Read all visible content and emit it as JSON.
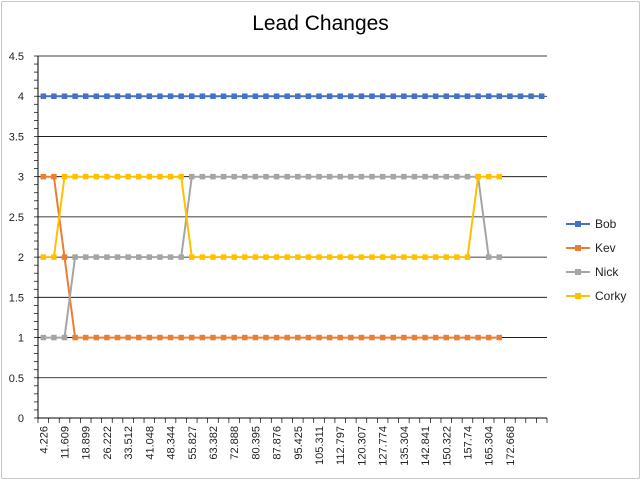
{
  "chart_data": {
    "type": "line",
    "title": "Lead Changes",
    "xlabel": "",
    "ylabel": "",
    "ylim": [
      0,
      4.5
    ],
    "yticks": [
      "0",
      "0.5",
      "1",
      "1.5",
      "2",
      "2.5",
      "3",
      "3.5",
      "4",
      "4.5"
    ],
    "grid": true,
    "legend_position": "right",
    "x_tick_labels": [
      "4.226",
      "11.609",
      "18.899",
      "26.222",
      "33.512",
      "41.048",
      "48.344",
      "55.827",
      "63.382",
      "72.888",
      "80.395",
      "87.876",
      "95.425",
      "105.311",
      "112.797",
      "120.307",
      "127.774",
      "135.304",
      "142.841",
      "150.322",
      "157.74",
      "165.304",
      "172.668"
    ],
    "num_x_points": 48,
    "series": [
      {
        "name": "Bob",
        "color": "#4472C4",
        "values": [
          4,
          4,
          4,
          4,
          4,
          4,
          4,
          4,
          4,
          4,
          4,
          4,
          4,
          4,
          4,
          4,
          4,
          4,
          4,
          4,
          4,
          4,
          4,
          4,
          4,
          4,
          4,
          4,
          4,
          4,
          4,
          4,
          4,
          4,
          4,
          4,
          4,
          4,
          4,
          4,
          4,
          4,
          4,
          4,
          4,
          4,
          4,
          4
        ]
      },
      {
        "name": "Kev",
        "color": "#ED7D31",
        "values": [
          3,
          3,
          2,
          1,
          1,
          1,
          1,
          1,
          1,
          1,
          1,
          1,
          1,
          1,
          1,
          1,
          1,
          1,
          1,
          1,
          1,
          1,
          1,
          1,
          1,
          1,
          1,
          1,
          1,
          1,
          1,
          1,
          1,
          1,
          1,
          1,
          1,
          1,
          1,
          1,
          1,
          1,
          1,
          1,
          null,
          null,
          null,
          null
        ]
      },
      {
        "name": "Nick",
        "color": "#A5A5A5",
        "values": [
          1,
          1,
          1,
          2,
          2,
          2,
          2,
          2,
          2,
          2,
          2,
          2,
          2,
          2,
          3,
          3,
          3,
          3,
          3,
          3,
          3,
          3,
          3,
          3,
          3,
          3,
          3,
          3,
          3,
          3,
          3,
          3,
          3,
          3,
          3,
          3,
          3,
          3,
          3,
          3,
          3,
          3,
          2,
          2,
          null,
          null,
          null,
          null
        ]
      },
      {
        "name": "Corky",
        "color": "#FFC000",
        "values": [
          2,
          2,
          3,
          3,
          3,
          3,
          3,
          3,
          3,
          3,
          3,
          3,
          3,
          3,
          2,
          2,
          2,
          2,
          2,
          2,
          2,
          2,
          2,
          2,
          2,
          2,
          2,
          2,
          2,
          2,
          2,
          2,
          2,
          2,
          2,
          2,
          2,
          2,
          2,
          2,
          2,
          3,
          3,
          3,
          null,
          null,
          null,
          null
        ]
      }
    ]
  }
}
